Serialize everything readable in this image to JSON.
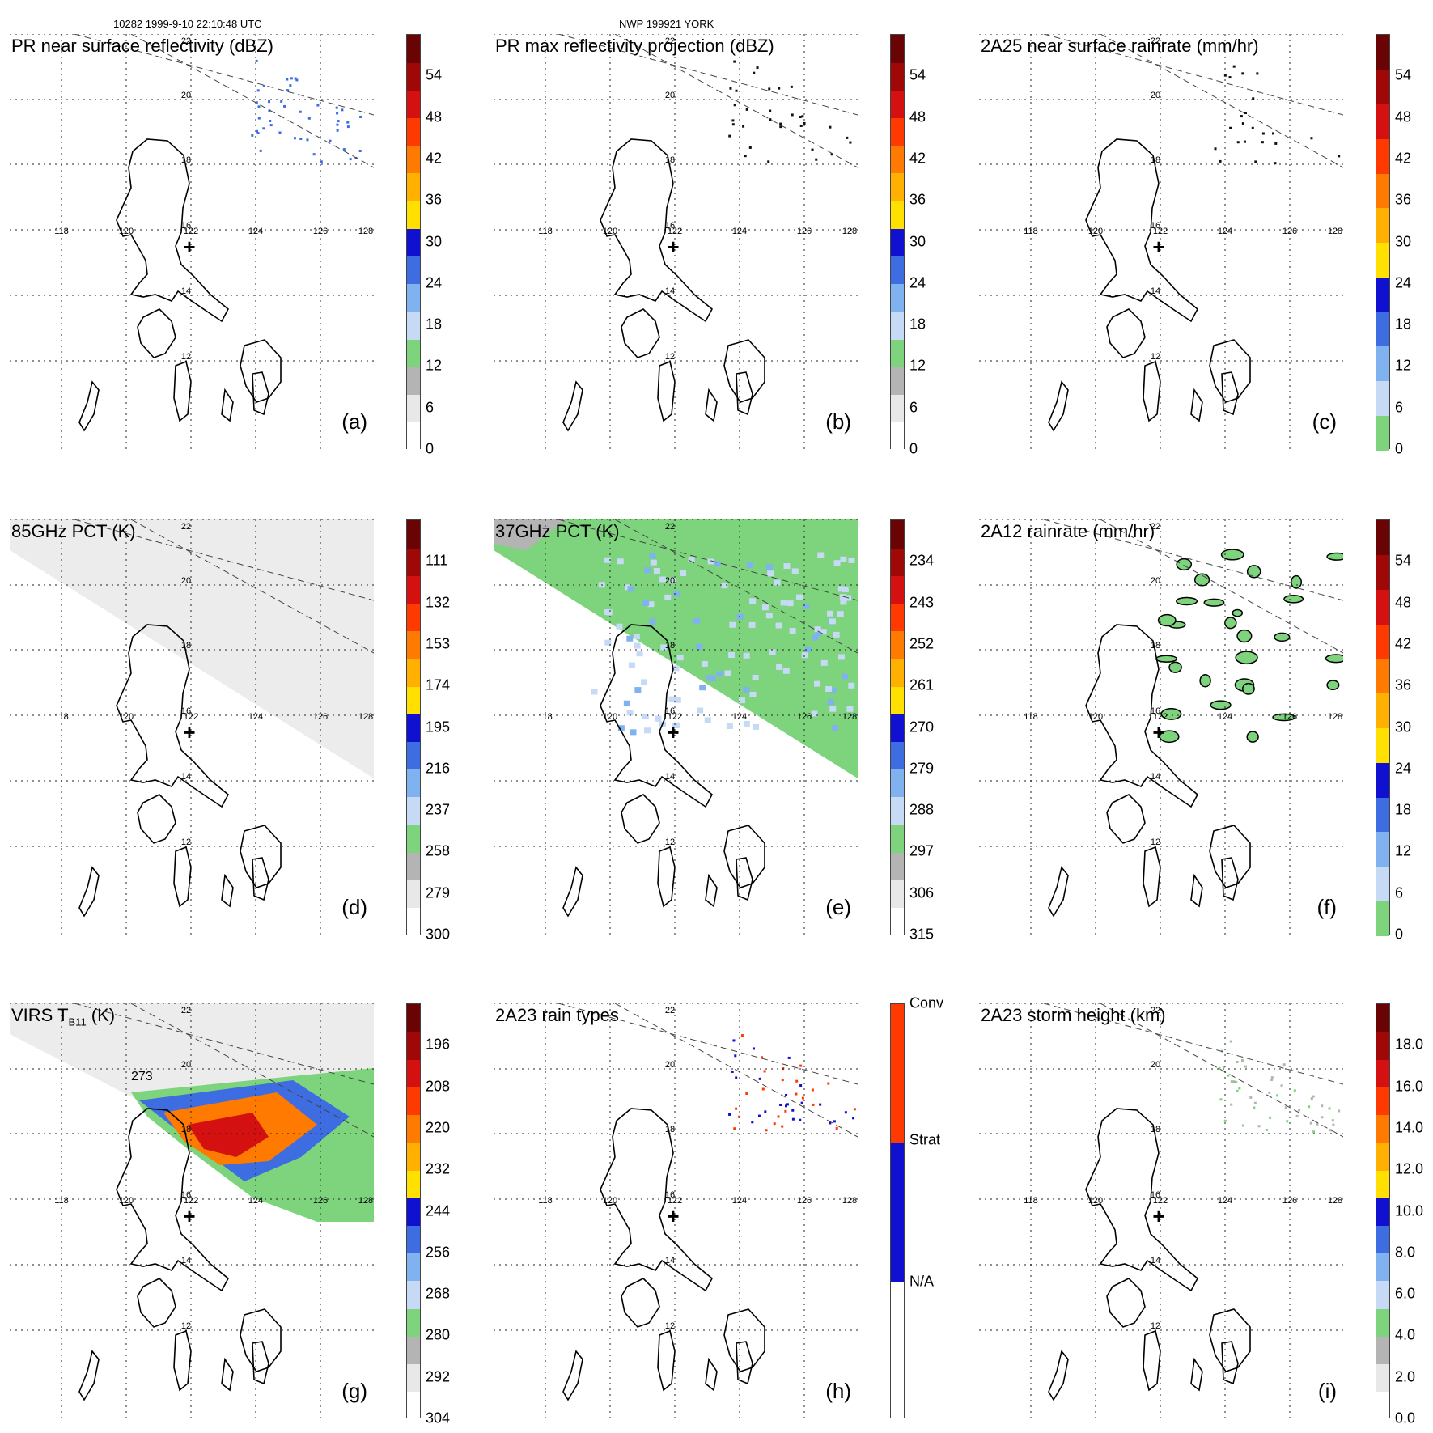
{
  "header": {
    "left": "10282 1999-9-10 22:10:48 UTC",
    "center": "NWP 199921 YORK"
  },
  "map": {
    "lon_labels": [
      "118",
      "120",
      "122",
      "124",
      "126",
      "128"
    ],
    "lat_labels": [
      "22",
      "20",
      "18",
      "16",
      "14",
      "12"
    ],
    "center_marker": "+"
  },
  "panels": [
    {
      "id": "a",
      "title": "PR near surface reflectivity (dBZ)",
      "label": "(a)",
      "ticks": [
        "54",
        "48",
        "42",
        "36",
        "30",
        "24",
        "18",
        "12",
        "6",
        "0"
      ],
      "colors": [
        "#ffffff",
        "#e8e8e8",
        "#b4b4b4",
        "#7dd47d",
        "#c6d9f5",
        "#7fb2ef",
        "#3d6de0",
        "#1010d0",
        "#ffe000",
        "#ffb000",
        "#ff7a00",
        "#ff3a00",
        "#d41010",
        "#a00808",
        "#6a0404"
      ]
    },
    {
      "id": "b",
      "title": "PR max reflectivity projection (dBZ)",
      "label": "(b)",
      "ticks": [
        "54",
        "48",
        "42",
        "36",
        "30",
        "24",
        "18",
        "12",
        "6",
        "0"
      ],
      "colors": [
        "#ffffff",
        "#e8e8e8",
        "#b4b4b4",
        "#7dd47d",
        "#c6d9f5",
        "#7fb2ef",
        "#3d6de0",
        "#1010d0",
        "#ffe000",
        "#ffb000",
        "#ff7a00",
        "#ff3a00",
        "#d41010",
        "#a00808",
        "#6a0404"
      ]
    },
    {
      "id": "c",
      "title": "2A25 near surface rainrate (mm/hr)",
      "label": "(c)",
      "ticks": [
        "54",
        "48",
        "42",
        "36",
        "30",
        "24",
        "18",
        "12",
        "6",
        "0"
      ],
      "colors": [
        "#7dd47d",
        "#c6d9f5",
        "#7fb2ef",
        "#3d6de0",
        "#1010d0",
        "#ffe000",
        "#ffb000",
        "#ff7a00",
        "#ff3a00",
        "#d41010",
        "#a00808",
        "#6a0404"
      ]
    },
    {
      "id": "d",
      "title": "85GHz PCT (K)",
      "label": "(d)",
      "ticks": [
        "111",
        "132",
        "153",
        "174",
        "195",
        "216",
        "237",
        "258",
        "279",
        "300"
      ],
      "colors": [
        "#ffffff",
        "#e8e8e8",
        "#b4b4b4",
        "#7dd47d",
        "#c6d9f5",
        "#7fb2ef",
        "#3d6de0",
        "#1010d0",
        "#ffe000",
        "#ffb000",
        "#ff7a00",
        "#ff3a00",
        "#d41010",
        "#a00808",
        "#6a0404"
      ]
    },
    {
      "id": "e",
      "title": "37GHz PCT (K)",
      "label": "(e)",
      "ticks": [
        "234",
        "243",
        "252",
        "261",
        "270",
        "279",
        "288",
        "297",
        "306",
        "315"
      ],
      "colors": [
        "#ffffff",
        "#e8e8e8",
        "#b4b4b4",
        "#7dd47d",
        "#c6d9f5",
        "#7fb2ef",
        "#3d6de0",
        "#1010d0",
        "#ffe000",
        "#ffb000",
        "#ff7a00",
        "#ff3a00",
        "#d41010",
        "#a00808",
        "#6a0404"
      ]
    },
    {
      "id": "f",
      "title": "2A12 rainrate (mm/hr)",
      "label": "(f)",
      "ticks": [
        "54",
        "48",
        "42",
        "36",
        "30",
        "24",
        "18",
        "12",
        "6",
        "0"
      ],
      "colors": [
        "#7dd47d",
        "#c6d9f5",
        "#7fb2ef",
        "#3d6de0",
        "#1010d0",
        "#ffe000",
        "#ffb000",
        "#ff7a00",
        "#ff3a00",
        "#d41010",
        "#a00808",
        "#6a0404"
      ]
    },
    {
      "id": "g",
      "title_main": "VIRS T",
      "title_sub": "B11",
      "title_unit": " (K)",
      "label": "(g)",
      "contour_label": "273",
      "ticks": [
        "196",
        "208",
        "220",
        "232",
        "244",
        "256",
        "268",
        "280",
        "292",
        "304"
      ],
      "colors": [
        "#ffffff",
        "#e8e8e8",
        "#b4b4b4",
        "#7dd47d",
        "#c6d9f5",
        "#7fb2ef",
        "#3d6de0",
        "#1010d0",
        "#ffe000",
        "#ffb000",
        "#ff7a00",
        "#ff3a00",
        "#d41010",
        "#a00808",
        "#6a0404"
      ]
    },
    {
      "id": "h",
      "title": "2A23 rain types",
      "label": "(h)",
      "ticks": [
        "Conv",
        "Strat",
        "N/A"
      ],
      "colors": [
        "#ffffff",
        "#1010d0",
        "#ff3a00"
      ]
    },
    {
      "id": "i",
      "title": "2A23 storm height (km)",
      "label": "(i)",
      "ticks": [
        "18.0",
        "16.0",
        "14.0",
        "12.0",
        "10.0",
        "8.0",
        "6.0",
        "4.0",
        "2.0",
        "0.0"
      ],
      "colors": [
        "#ffffff",
        "#e8e8e8",
        "#b4b4b4",
        "#7dd47d",
        "#c6d9f5",
        "#7fb2ef",
        "#3d6de0",
        "#1010d0",
        "#ffe000",
        "#ffb000",
        "#ff7a00",
        "#ff3a00",
        "#d41010",
        "#a00808",
        "#6a0404"
      ]
    }
  ]
}
